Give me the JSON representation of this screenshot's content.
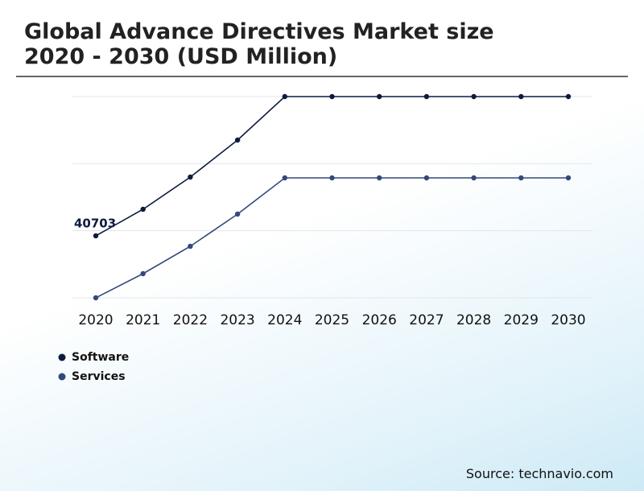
{
  "chart_data": {
    "type": "line",
    "title": "Global Advance Directives Market size 2020 - 2030 (USD Million)",
    "categories": [
      "2020",
      "2021",
      "2022",
      "2023",
      "2024",
      "2025",
      "2026",
      "2027",
      "2028",
      "2029",
      "2030"
    ],
    "series": [
      {
        "name": "Software",
        "color": "#0d1b3e",
        "values": [
          40703,
          45980,
          52380,
          59740,
          68380,
          68380,
          68380,
          68380,
          68380,
          68380,
          68380
        ]
      },
      {
        "name": "Services",
        "color": "#34497a",
        "values": [
          28380,
          33180,
          38620,
          45020,
          52220,
          52220,
          52220,
          52220,
          52220,
          52220,
          52220
        ]
      }
    ],
    "ylim": [
      28380,
      68380
    ],
    "grid": true,
    "source": "Source: technavio.com"
  }
}
